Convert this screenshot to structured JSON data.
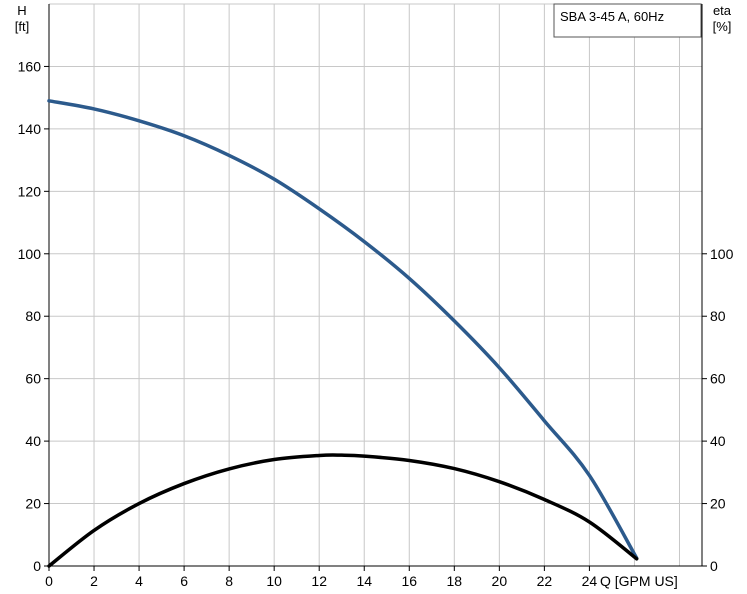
{
  "chart_data": {
    "type": "line",
    "title": "SBA 3-45 A, 60Hz",
    "x_axis": {
      "label": "Q [GPM US]",
      "min": 0,
      "max": 29,
      "ticks": [
        0,
        2,
        4,
        6,
        8,
        10,
        12,
        14,
        16,
        18,
        20,
        22,
        24
      ],
      "grid": [
        0,
        2,
        4,
        6,
        8,
        10,
        12,
        14,
        16,
        18,
        20,
        22,
        24,
        26,
        28
      ]
    },
    "y_axis_left": {
      "label_line1": "H",
      "label_line2": "[ft]",
      "min": 0,
      "max": 180,
      "ticks": [
        0,
        20,
        40,
        60,
        80,
        100,
        120,
        140,
        160
      ],
      "grid": [
        0,
        20,
        40,
        60,
        80,
        100,
        120,
        140,
        160,
        180
      ]
    },
    "y_axis_right": {
      "label_line1": "eta",
      "label_line2": "[%]",
      "min": 0,
      "max": 180,
      "ticks": [
        0,
        20,
        40,
        60,
        80,
        100
      ]
    },
    "series": [
      {
        "id": "head",
        "axis": "left",
        "color": "#2c5a8c",
        "x": [
          0,
          2,
          4,
          6,
          8,
          10,
          12,
          14,
          16,
          18,
          20,
          22,
          24,
          26.1
        ],
        "y": [
          149,
          146.4,
          142.6,
          137.8,
          131.5,
          123.9,
          114.4,
          103.9,
          92.1,
          78.5,
          63.5,
          46.5,
          29.0,
          2.5
        ]
      },
      {
        "id": "efficiency",
        "axis": "right",
        "color": "#000000",
        "x": [
          0,
          2,
          4,
          6,
          8,
          10,
          12,
          13,
          14,
          16,
          18,
          20,
          22,
          24,
          26.1
        ],
        "y": [
          0,
          11.4,
          20.0,
          26.4,
          31.1,
          34.1,
          35.4,
          35.5,
          35.2,
          33.8,
          31.2,
          27.0,
          21.3,
          14.1,
          2.3
        ]
      }
    ]
  }
}
